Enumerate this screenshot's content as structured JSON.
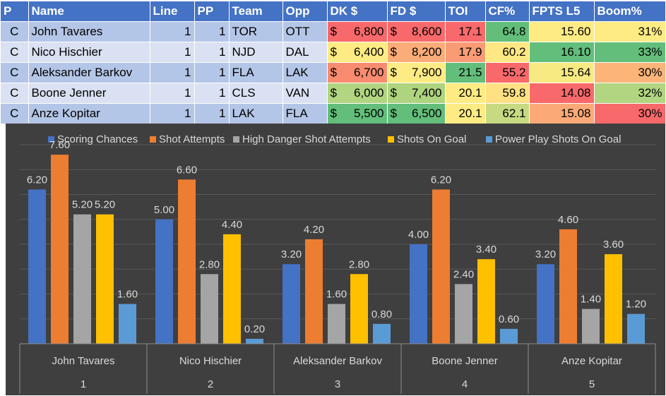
{
  "table": {
    "headers": [
      "P",
      "Name",
      "Line",
      "PP",
      "Team",
      "Opp",
      "DK $",
      "FD $",
      "TOI",
      "CF%",
      "FPTS L5",
      "Boom%"
    ],
    "rows": [
      {
        "p": "C",
        "name": "John Tavares",
        "line": "1",
        "pp": "1",
        "team": "TOR",
        "opp": "OTT",
        "dk": "6,800",
        "fd": "8,600",
        "toi": "17.1",
        "cf": "64.8",
        "fpts": "15.60",
        "boom": "31%"
      },
      {
        "p": "C",
        "name": "Nico Hischier",
        "line": "1",
        "pp": "1",
        "team": "NJD",
        "opp": "DAL",
        "dk": "6,400",
        "fd": "8,200",
        "toi": "17.9",
        "cf": "60.2",
        "fpts": "16.10",
        "boom": "33%"
      },
      {
        "p": "C",
        "name": "Aleksander Barkov",
        "line": "1",
        "pp": "1",
        "team": "FLA",
        "opp": "LAK",
        "dk": "6,700",
        "fd": "7,900",
        "toi": "21.5",
        "cf": "55.2",
        "fpts": "15.64",
        "boom": "30%"
      },
      {
        "p": "C",
        "name": "Boone Jenner",
        "line": "1",
        "pp": "1",
        "team": "CLS",
        "opp": "VAN",
        "dk": "6,000",
        "fd": "7,400",
        "toi": "20.1",
        "cf": "59.8",
        "fpts": "14.08",
        "boom": "32%"
      },
      {
        "p": "C",
        "name": "Anze Kopitar",
        "line": "1",
        "pp": "1",
        "team": "LAK",
        "opp": "FLA",
        "dk": "5,500",
        "fd": "6,500",
        "toi": "20.1",
        "cf": "62.1",
        "fpts": "15.08",
        "boom": "30%"
      }
    ],
    "currency_symbol": "$",
    "cell_colors": [
      {
        "dk": "#f8696b",
        "fd": "#f8696b",
        "toi": "#f8696b",
        "cf": "#63be7b",
        "fpts": "#ffeb84",
        "boom": "#ffeb84"
      },
      {
        "dk": "#ffeb84",
        "fd": "#fcac78",
        "toi": "#f99b74",
        "cf": "#ffe783",
        "fpts": "#63be7b",
        "boom": "#63be7b"
      },
      {
        "dk": "#f98b71",
        "fd": "#ffeb84",
        "toi": "#63be7b",
        "cf": "#f8696b",
        "fpts": "#f8ea83",
        "boom": "#fcb479"
      },
      {
        "dk": "#b1d580",
        "fd": "#aed47f",
        "toi": "#ffeb84",
        "cf": "#ffe082",
        "fpts": "#f8696b",
        "boom": "#b1d580"
      },
      {
        "dk": "#63be7b",
        "fd": "#63be7b",
        "toi": "#ffeb84",
        "cf": "#c7da81",
        "fpts": "#fbaa77",
        "boom": "#f8696b"
      }
    ]
  },
  "chart_data": {
    "type": "bar",
    "categories": [
      "John Tavares",
      "Nico Hischier",
      "Aleksander Barkov",
      "Boone Jenner",
      "Anze Kopitar"
    ],
    "category_index": [
      "1",
      "2",
      "3",
      "4",
      "5"
    ],
    "series": [
      {
        "name": "Scoring Chances",
        "values": [
          6.2,
          5.0,
          3.2,
          4.0,
          3.2
        ],
        "labels": [
          "6.20",
          "5.00",
          "3.20",
          "4.00",
          "3.20"
        ],
        "color": "#4472c4"
      },
      {
        "name": "Shot Attempts",
        "values": [
          7.6,
          6.6,
          4.2,
          6.2,
          4.6
        ],
        "labels": [
          "7.60",
          "6.60",
          "4.20",
          "6.20",
          "4.60"
        ],
        "color": "#ed7d31"
      },
      {
        "name": "High Danger Shot Attempts",
        "values": [
          5.2,
          2.8,
          1.6,
          2.4,
          1.4
        ],
        "labels": [
          "5.20",
          "2.80",
          "1.60",
          "2.40",
          "1.40"
        ],
        "color": "#a5a5a5"
      },
      {
        "name": "Shots On Goal",
        "values": [
          5.2,
          4.4,
          2.8,
          3.4,
          3.6
        ],
        "labels": [
          "5.20",
          "4.40",
          "2.80",
          "3.40",
          "3.60"
        ],
        "color": "#ffc000"
      },
      {
        "name": "Power Play Shots On Goal",
        "values": [
          1.6,
          0.2,
          0.8,
          0.6,
          1.2
        ],
        "labels": [
          "1.60",
          "0.20",
          "0.80",
          "0.60",
          "1.20"
        ],
        "color": "#5b9bd5"
      }
    ],
    "ylim": [
      0,
      8
    ],
    "grid": true,
    "legend": "top",
    "title": "",
    "xlabel": "",
    "ylabel": "",
    "colors": {
      "background": "#3f3f3f",
      "text": "#d9d9d9",
      "grid": "#595959",
      "axis": "#8c8c8c"
    }
  }
}
